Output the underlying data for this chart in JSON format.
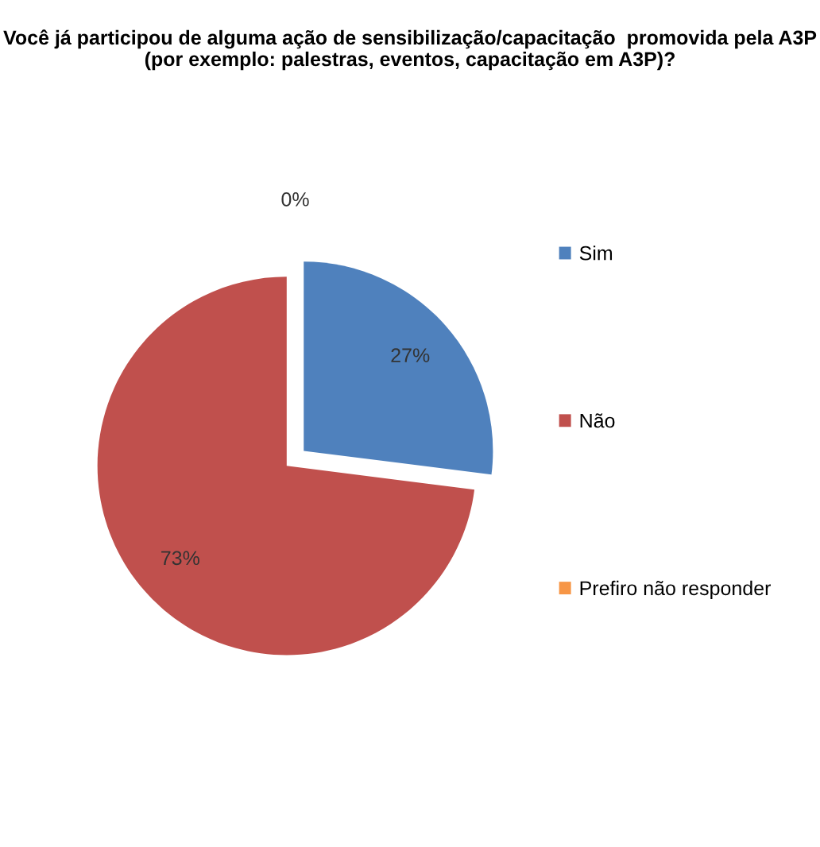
{
  "chart_data": {
    "type": "pie",
    "title": "Você já participou de alguma ação de sensibilização/capacitação  promovida pela A3P (por exemplo: palestras, eventos, capacitação em A3P)?",
    "categories": [
      "Sim",
      "Não",
      "Prefiro não responder"
    ],
    "values": [
      27,
      73,
      0
    ],
    "colors": [
      "#4f81bd",
      "#c0504d",
      "#f79646"
    ],
    "value_labels": [
      "27%",
      "73%",
      "0%"
    ],
    "legend": "right"
  }
}
